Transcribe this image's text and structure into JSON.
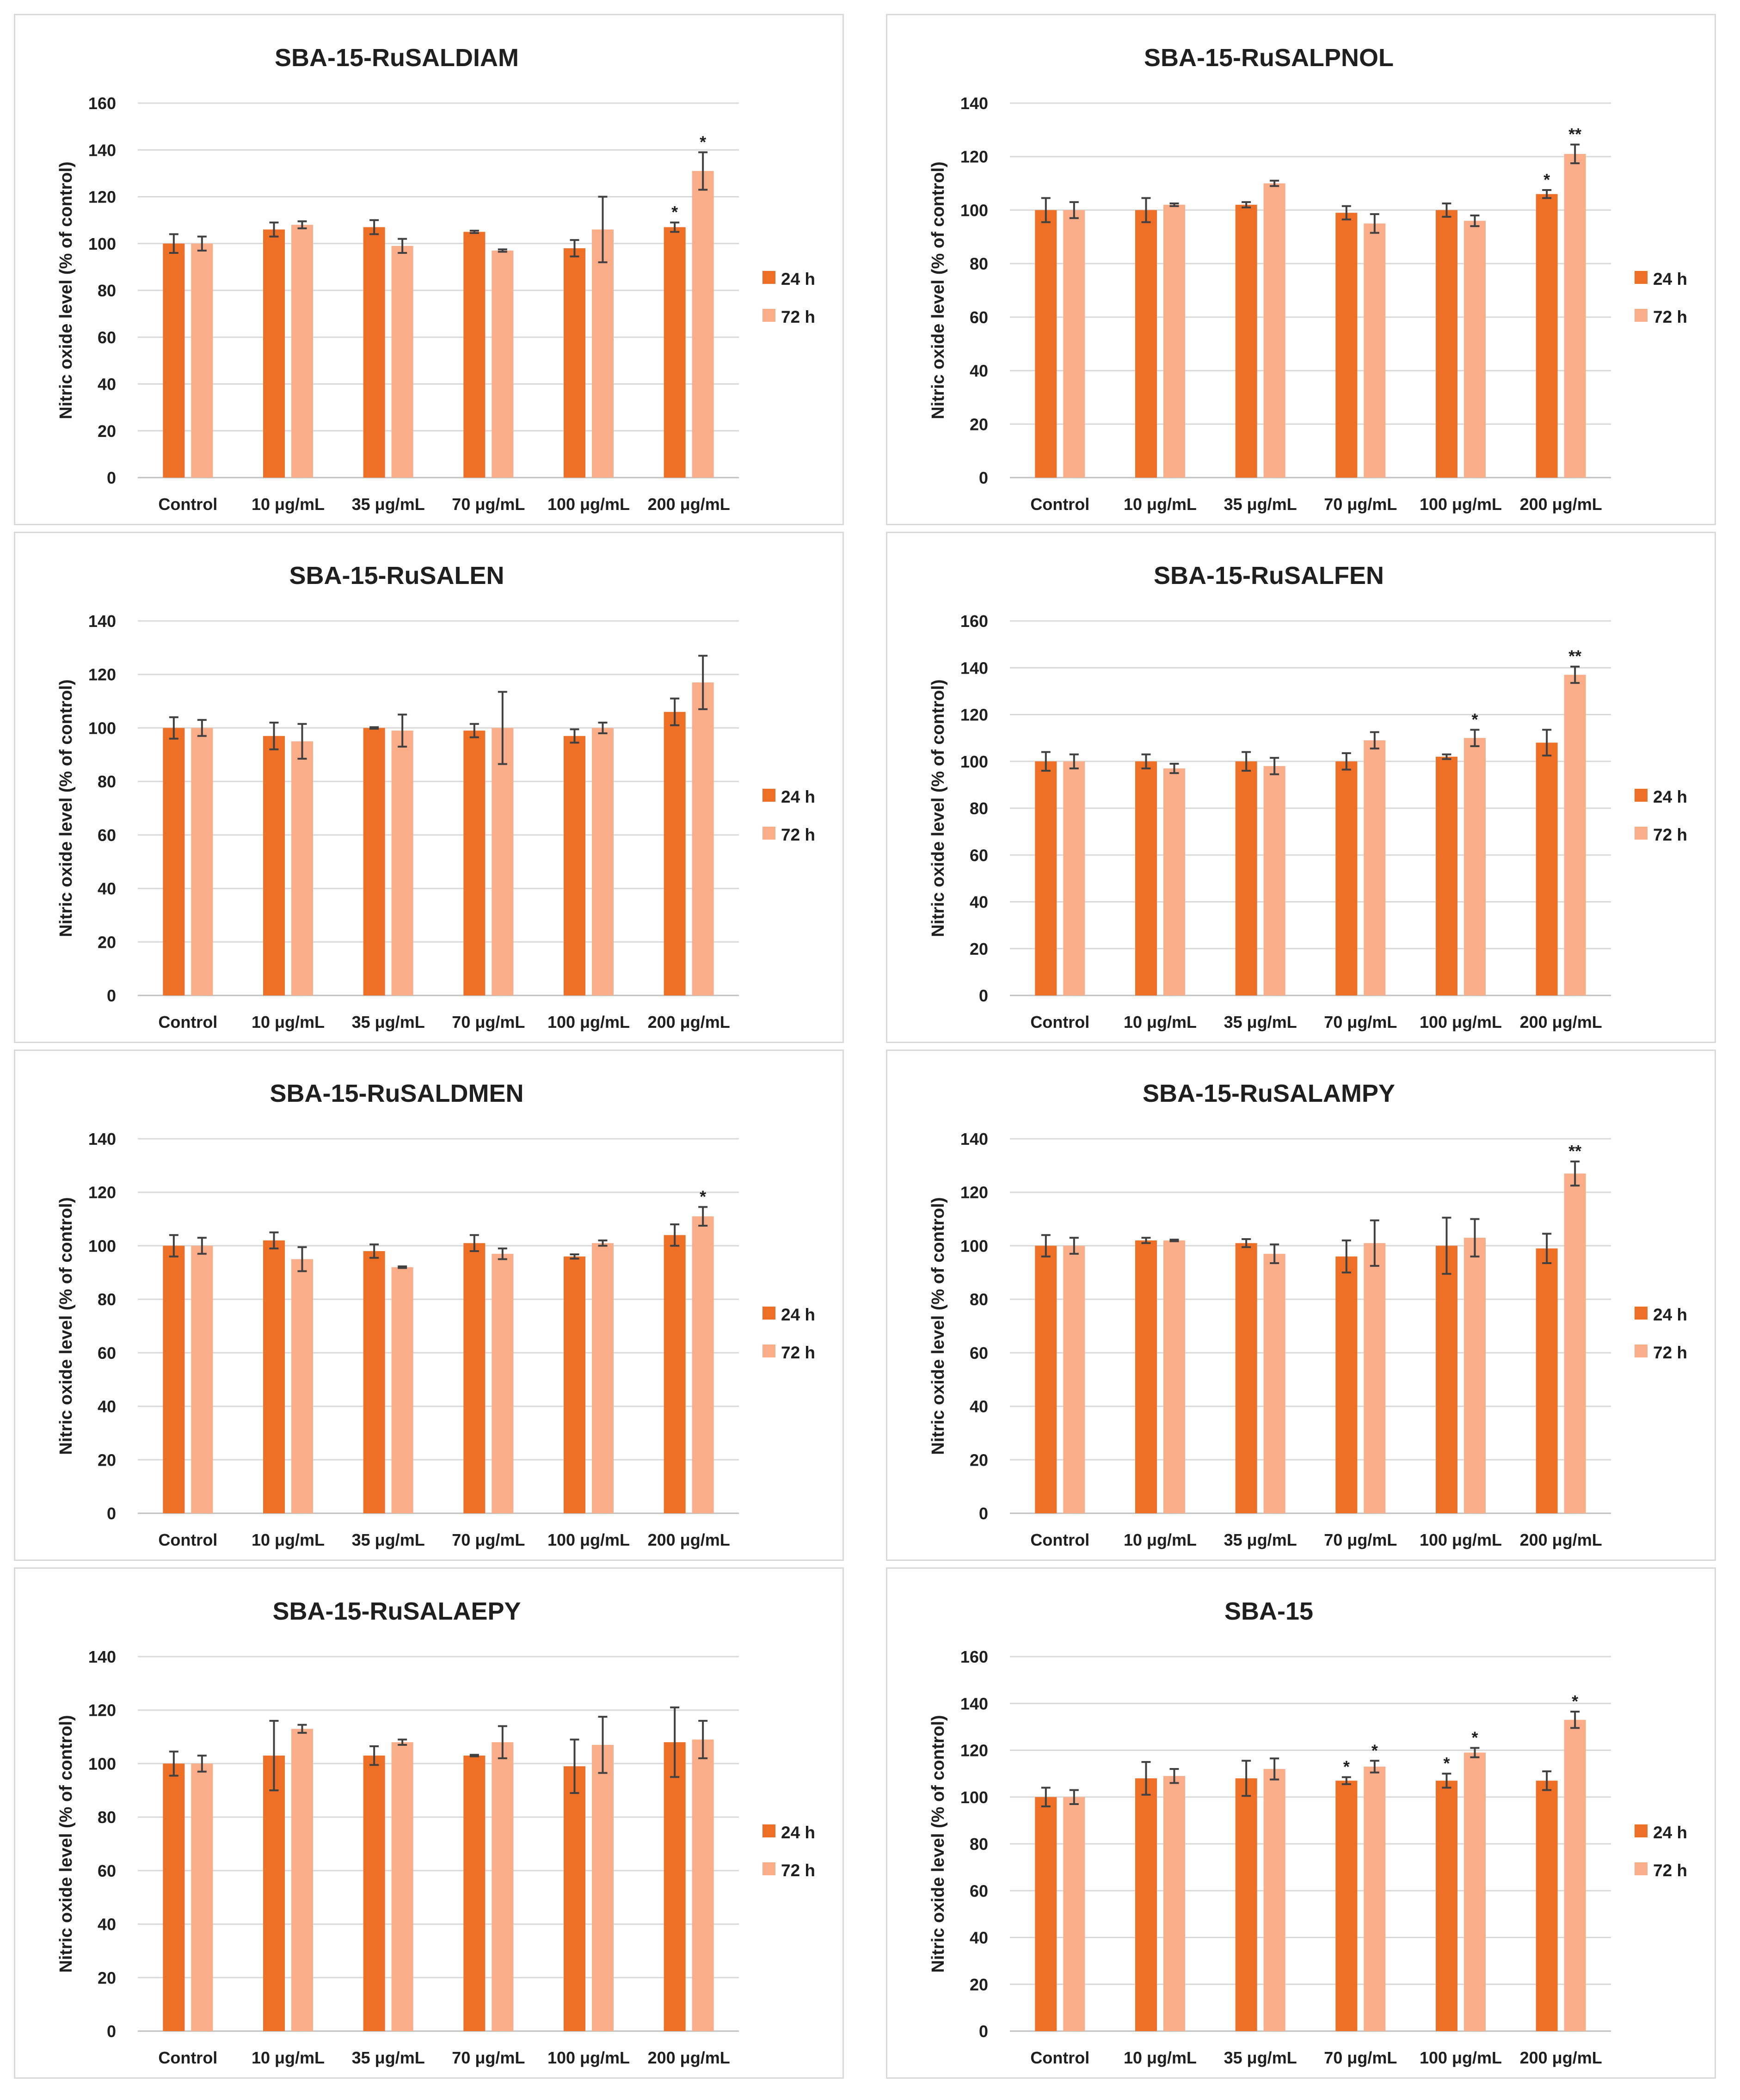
{
  "chart_data": [
    {
      "type": "bar",
      "title": "SBA-15-RuSALDIAM",
      "ylabel": "Nitric oxide level (% of control)",
      "xlabel": "",
      "ylim": [
        0,
        160
      ],
      "yticks": [
        0,
        20,
        40,
        60,
        80,
        100,
        120,
        140,
        160
      ],
      "categories": [
        "Control",
        "10 μg/mL",
        "35 μg/mL",
        "70 μg/mL",
        "100 μg/mL",
        "200 μg/mL"
      ],
      "legend": "right",
      "series": [
        {
          "name": "24 h",
          "color": "#ee7026",
          "values": [
            100,
            106,
            107,
            105,
            98,
            107
          ],
          "errors": [
            4,
            3,
            3,
            0.5,
            3.5,
            2
          ],
          "significance": [
            "",
            "",
            "",
            "",
            "",
            "*"
          ]
        },
        {
          "name": "72 h",
          "color": "#f9ad88",
          "values": [
            100,
            108,
            99,
            97,
            106,
            131
          ],
          "errors": [
            3,
            1.5,
            3,
            0.5,
            14,
            8
          ],
          "significance": [
            "",
            "",
            "",
            "",
            "",
            "*"
          ]
        }
      ]
    },
    {
      "type": "bar",
      "title": "SBA-15-RuSALPNOL",
      "ylabel": "Nitric oxide level (% of control)",
      "xlabel": "",
      "ylim": [
        0,
        140
      ],
      "yticks": [
        0,
        20,
        40,
        60,
        80,
        100,
        120,
        140
      ],
      "categories": [
        "Control",
        "10 μg/mL",
        "35 μg/mL",
        "70 μg/mL",
        "100 μg/mL",
        "200 μg/mL"
      ],
      "legend": "right",
      "series": [
        {
          "name": "24 h",
          "color": "#ee7026",
          "values": [
            100,
            100,
            102,
            99,
            100,
            106
          ],
          "errors": [
            4.5,
            4.5,
            1,
            2.5,
            2.5,
            1.5
          ],
          "significance": [
            "",
            "",
            "",
            "",
            "",
            "*"
          ]
        },
        {
          "name": "72 h",
          "color": "#f9ad88",
          "values": [
            100,
            102,
            110,
            95,
            96,
            121
          ],
          "errors": [
            3,
            0.5,
            1,
            3.5,
            2,
            3.5
          ],
          "significance": [
            "",
            "",
            "",
            "",
            "",
            "**"
          ]
        }
      ]
    },
    {
      "type": "bar",
      "title": "SBA-15-RuSALEN",
      "ylabel": "Nitric oxide level (% of control)",
      "xlabel": "",
      "ylim": [
        0,
        140
      ],
      "yticks": [
        0,
        20,
        40,
        60,
        80,
        100,
        120,
        140
      ],
      "categories": [
        "Control",
        "10 μg/mL",
        "35 μg/mL",
        "70 μg/mL",
        "100 μg/mL",
        "200 μg/mL"
      ],
      "legend": "right",
      "series": [
        {
          "name": "24 h",
          "color": "#ee7026",
          "values": [
            100,
            97,
            100,
            99,
            97,
            106
          ],
          "errors": [
            4,
            5,
            0.3,
            2.5,
            2.5,
            5
          ],
          "significance": [
            "",
            "",
            "",
            "",
            "",
            ""
          ]
        },
        {
          "name": "72 h",
          "color": "#f9ad88",
          "values": [
            100,
            95,
            99,
            100,
            100,
            117
          ],
          "errors": [
            3,
            6.5,
            6,
            13.5,
            2,
            10
          ],
          "significance": [
            "",
            "",
            "",
            "",
            "",
            ""
          ]
        }
      ]
    },
    {
      "type": "bar",
      "title": "SBA-15-RuSALFEN",
      "ylabel": "Nitric oxide level (% of control)",
      "xlabel": "",
      "ylim": [
        0,
        160
      ],
      "yticks": [
        0,
        20,
        40,
        60,
        80,
        100,
        120,
        140,
        160
      ],
      "categories": [
        "Control",
        "10 μg/mL",
        "35 μg/mL",
        "70 μg/mL",
        "100 μg/mL",
        "200 μg/mL"
      ],
      "legend": "right",
      "series": [
        {
          "name": "24 h",
          "color": "#ee7026",
          "values": [
            100,
            100,
            100,
            100,
            102,
            108
          ],
          "errors": [
            4,
            3,
            4,
            3.5,
            1,
            5.5
          ],
          "significance": [
            "",
            "",
            "",
            "",
            "",
            ""
          ]
        },
        {
          "name": "72 h",
          "color": "#f9ad88",
          "values": [
            100,
            97,
            98,
            109,
            110,
            137
          ],
          "errors": [
            3,
            2,
            3.5,
            3.5,
            3.5,
            3.5
          ],
          "significance": [
            "",
            "",
            "",
            "",
            "*",
            "**"
          ]
        }
      ]
    },
    {
      "type": "bar",
      "title": "SBA-15-RuSALDMEN",
      "ylabel": "Nitric oxide level (% of control)",
      "xlabel": "",
      "ylim": [
        0,
        140
      ],
      "yticks": [
        0,
        20,
        40,
        60,
        80,
        100,
        120,
        140
      ],
      "categories": [
        "Control",
        "10 μg/mL",
        "35 μg/mL",
        "70 μg/mL",
        "100 μg/mL",
        "200 μg/mL"
      ],
      "legend": "right",
      "series": [
        {
          "name": "24 h",
          "color": "#ee7026",
          "values": [
            100,
            102,
            98,
            101,
            96,
            104
          ],
          "errors": [
            4,
            3,
            2.5,
            3,
            0.8,
            4
          ],
          "significance": [
            "",
            "",
            "",
            "",
            "",
            ""
          ]
        },
        {
          "name": "72 h",
          "color": "#f9ad88",
          "values": [
            100,
            95,
            92,
            97,
            101,
            111
          ],
          "errors": [
            3,
            4.5,
            0.3,
            2,
            1,
            3.5
          ],
          "significance": [
            "",
            "",
            "",
            "",
            "",
            "*"
          ]
        }
      ]
    },
    {
      "type": "bar",
      "title": "SBA-15-RuSALAMPY",
      "ylabel": "Nitric oxide level (% of control)",
      "xlabel": "",
      "ylim": [
        0,
        140
      ],
      "yticks": [
        0,
        20,
        40,
        60,
        80,
        100,
        120,
        140
      ],
      "categories": [
        "Control",
        "10 μg/mL",
        "35 μg/mL",
        "70 μg/mL",
        "100 μg/mL",
        "200 μg/mL"
      ],
      "legend": "right",
      "series": [
        {
          "name": "24 h",
          "color": "#ee7026",
          "values": [
            100,
            102,
            101,
            96,
            100,
            99
          ],
          "errors": [
            4,
            1,
            1.5,
            6,
            10.5,
            5.5
          ],
          "significance": [
            "",
            "",
            "",
            "",
            "",
            ""
          ]
        },
        {
          "name": "72 h",
          "color": "#f9ad88",
          "values": [
            100,
            102,
            97,
            101,
            103,
            127
          ],
          "errors": [
            3,
            0.3,
            3.5,
            8.5,
            7,
            4.5
          ],
          "significance": [
            "",
            "",
            "",
            "",
            "",
            "**"
          ]
        }
      ]
    },
    {
      "type": "bar",
      "title": "SBA-15-RuSALAEPY",
      "ylabel": "Nitric oxide level (% of control)",
      "xlabel": "",
      "ylim": [
        0,
        140
      ],
      "yticks": [
        0,
        20,
        40,
        60,
        80,
        100,
        120,
        140
      ],
      "categories": [
        "Control",
        "10 μg/mL",
        "35 μg/mL",
        "70 μg/mL",
        "100 μg/mL",
        "200 μg/mL"
      ],
      "legend": "right",
      "series": [
        {
          "name": "24 h",
          "color": "#ee7026",
          "values": [
            100,
            103,
            103,
            103,
            99,
            108
          ],
          "errors": [
            4.5,
            13,
            3.5,
            0.3,
            10,
            13
          ],
          "significance": [
            "",
            "",
            "",
            "",
            "",
            ""
          ]
        },
        {
          "name": "72 h",
          "color": "#f9ad88",
          "values": [
            100,
            113,
            108,
            108,
            107,
            109
          ],
          "errors": [
            3,
            1.5,
            1,
            6,
            10.5,
            7
          ],
          "significance": [
            "",
            "",
            "",
            "",
            "",
            ""
          ]
        }
      ]
    },
    {
      "type": "bar",
      "title": "SBA-15",
      "ylabel": "Nitric oxide level (% of control)",
      "xlabel": "",
      "ylim": [
        0,
        160
      ],
      "yticks": [
        0,
        20,
        40,
        60,
        80,
        100,
        120,
        140,
        160
      ],
      "categories": [
        "Control",
        "10 μg/mL",
        "35 μg/mL",
        "70 μg/mL",
        "100 μg/mL",
        "200 μg/mL"
      ],
      "legend": "right",
      "series": [
        {
          "name": "24 h",
          "color": "#ee7026",
          "values": [
            100,
            108,
            108,
            107,
            107,
            107
          ],
          "errors": [
            4,
            7,
            7.5,
            1.5,
            3,
            4
          ],
          "significance": [
            "",
            "",
            "",
            "*",
            "*",
            ""
          ]
        },
        {
          "name": "72 h",
          "color": "#f9ad88",
          "values": [
            100,
            109,
            112,
            113,
            119,
            133
          ],
          "errors": [
            3,
            3,
            4.5,
            2.5,
            2,
            3.5
          ],
          "significance": [
            "",
            "",
            "",
            "*",
            "*",
            "*"
          ]
        }
      ]
    }
  ]
}
